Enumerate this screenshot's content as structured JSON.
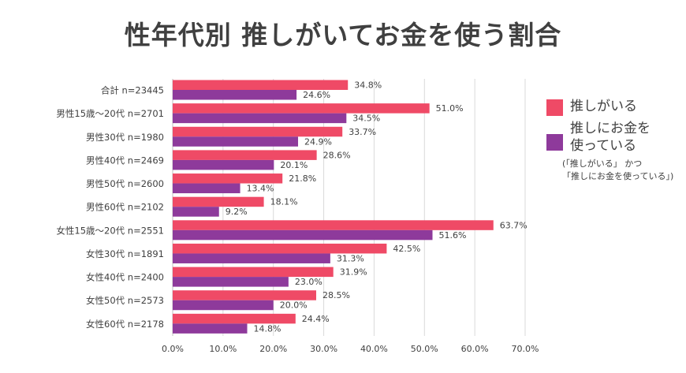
{
  "chart_data": {
    "type": "bar",
    "orientation": "horizontal",
    "title": "性年代別 推しがいてお金を使う割合",
    "categories": [
      "合計 n=23445",
      "男性15歳～20代 n=2701",
      "男性30代 n=1980",
      "男性40代 n=2469",
      "男性50代 n=2600",
      "男性60代 n=2102",
      "女性15歳～20代 n=2551",
      "女性30代 n=1891",
      "女性40代 n=2400",
      "女性50代 n=2573",
      "女性60代 n=2178"
    ],
    "series": [
      {
        "name": "推しがいる",
        "color": "#ef4a66",
        "values": [
          34.8,
          51.0,
          33.7,
          28.6,
          21.8,
          18.1,
          63.7,
          42.5,
          31.9,
          28.5,
          24.4
        ]
      },
      {
        "name": "推しにお金を使っている",
        "color": "#8e3a9b",
        "values": [
          24.6,
          34.5,
          24.9,
          20.1,
          13.4,
          9.2,
          51.6,
          31.3,
          23.0,
          20.0,
          14.8
        ]
      }
    ],
    "xlim": [
      0,
      70
    ],
    "xticks": [
      "0.0%",
      "10.0%",
      "20.0%",
      "30.0%",
      "40.0%",
      "50.0%",
      "60.0%",
      "70.0%"
    ],
    "grid": true,
    "legend_position": "right",
    "legend_note": [
      "(「推しがいる」 かつ",
      "「推しにお金を使っている」)"
    ]
  }
}
